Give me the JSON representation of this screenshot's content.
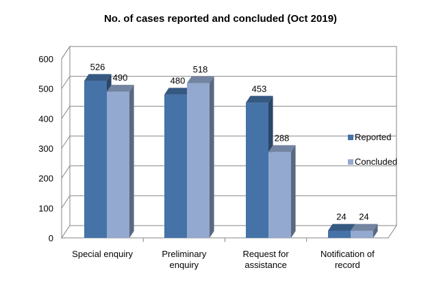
{
  "chart_data": {
    "type": "bar",
    "title": "No. of cases reported and concluded (Oct 2019)",
    "categories": [
      [
        "Special enquiry"
      ],
      [
        "Preliminary",
        "enquiry"
      ],
      [
        "Request for",
        "assistance"
      ],
      [
        "Notification of",
        "record"
      ]
    ],
    "series": [
      {
        "name": "Reported",
        "values": [
          526,
          480,
          453,
          24
        ],
        "color": "#4572A7"
      },
      {
        "name": "Concluded",
        "values": [
          490,
          518,
          288,
          24
        ],
        "color": "#93A9CF"
      }
    ],
    "ylim": [
      0,
      600
    ],
    "yticks": [
      0,
      100,
      200,
      300,
      400,
      500,
      600
    ],
    "grid": true,
    "legend": "right"
  }
}
